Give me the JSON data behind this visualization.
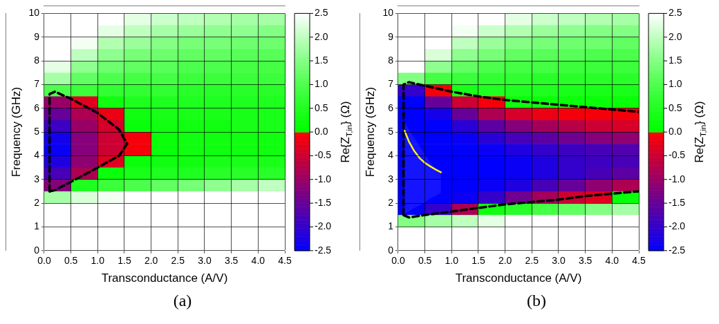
{
  "chart_data": [
    {
      "type": "heatmap",
      "xlabel": "Transconductance (A/V)",
      "ylabel": "Frequency (GHz)",
      "clabel": "Re{Z$_{T,in}$} (Ω)",
      "annotations": [
        "(a)"
      ],
      "xlim": [
        0,
        4.5
      ],
      "xticks": [
        {
          "value": 0,
          "label": "0.0"
        },
        {
          "value": 0.5,
          "label": "0.5"
        },
        {
          "value": 1,
          "label": "1.0"
        },
        {
          "value": 1.5,
          "label": "1.5"
        },
        {
          "value": 2,
          "label": "2.0"
        },
        {
          "value": 2.5,
          "label": "2.5"
        },
        {
          "value": 3,
          "label": "3.0"
        },
        {
          "value": 3.5,
          "label": "3.5"
        },
        {
          "value": 4,
          "label": "4.0"
        },
        {
          "value": 4.5,
          "label": "4.5"
        }
      ],
      "ylim": [
        0,
        10
      ],
      "yticks": [
        0,
        1,
        2,
        3,
        4,
        5,
        6,
        7,
        8,
        9,
        10
      ],
      "clim": [
        -2.5,
        2.5
      ],
      "cticks": [
        {
          "value": -2.5,
          "label": "-2.5"
        },
        {
          "value": -2,
          "label": "-2.0"
        },
        {
          "value": -1.5,
          "label": "-1.5"
        },
        {
          "value": -1,
          "label": "-1.0"
        },
        {
          "value": -0.5,
          "label": "-0.5"
        },
        {
          "value": 0,
          "label": "0.0"
        },
        {
          "value": 0.5,
          "label": "0.5"
        },
        {
          "value": 1,
          "label": "1.0"
        },
        {
          "value": 1.5,
          "label": "1.5"
        },
        {
          "value": 2,
          "label": "2.0"
        },
        {
          "value": 2.5,
          "label": "2.5"
        }
      ],
      "grid": true,
      "marker": "none",
      "cells": [
        [
          2.5,
          2.5,
          2.5,
          2.3,
          2.1,
          2.0,
          1.9,
          1.8,
          1.8
        ],
        [
          2.5,
          2.5,
          2.3,
          2.0,
          1.8,
          1.7,
          1.6,
          1.6,
          1.5
        ],
        [
          2.5,
          2.4,
          1.9,
          1.7,
          1.5,
          1.4,
          1.4,
          1.3,
          1.3
        ],
        [
          2.5,
          2.0,
          1.6,
          1.4,
          1.3,
          1.2,
          1.2,
          1.1,
          1.1
        ],
        [
          2.3,
          1.6,
          1.3,
          1.2,
          1.1,
          1.0,
          1.0,
          0.9,
          0.9
        ],
        [
          1.8,
          1.2,
          1.0,
          0.9,
          0.9,
          0.8,
          0.8,
          0.8,
          0.8
        ],
        [
          1.0,
          0.8,
          0.7,
          0.7,
          0.7,
          0.6,
          0.6,
          0.6,
          0.6
        ],
        [
          -1.0,
          -0.3,
          0.3,
          0.5,
          0.5,
          0.5,
          0.5,
          0.5,
          0.5
        ],
        [
          -1.5,
          -0.8,
          -0.2,
          0.3,
          0.4,
          0.4,
          0.4,
          0.4,
          0.4
        ],
        [
          -1.9,
          -1.0,
          -0.4,
          0.2,
          0.3,
          0.3,
          0.3,
          0.4,
          0.4
        ],
        [
          -2.3,
          -1.2,
          -0.5,
          -0.1,
          0.2,
          0.3,
          0.3,
          0.3,
          0.3
        ],
        [
          -2.4,
          -1.2,
          -0.5,
          -0.1,
          0.2,
          0.3,
          0.3,
          0.3,
          0.3
        ],
        [
          -2.2,
          -1.1,
          -0.3,
          0.2,
          0.3,
          0.3,
          0.4,
          0.4,
          0.4
        ],
        [
          -1.8,
          -0.8,
          0.2,
          0.4,
          0.5,
          0.5,
          0.6,
          0.6,
          0.6
        ],
        [
          -1.2,
          0.5,
          0.8,
          1.0,
          1.2,
          1.4,
          1.6,
          1.8,
          2.0
        ],
        [
          1.8,
          2.2,
          2.4,
          2.5,
          2.5,
          2.5,
          2.5,
          2.5,
          2.5
        ],
        [
          2.5,
          2.5,
          2.5,
          2.5,
          2.5,
          2.5,
          2.5,
          2.5,
          2.5
        ],
        [
          2.5,
          2.5,
          2.5,
          2.5,
          2.5,
          2.5,
          2.5,
          2.5,
          2.5
        ],
        [
          2.5,
          2.5,
          2.5,
          2.5,
          2.5,
          2.5,
          2.5,
          2.5,
          2.5
        ],
        [
          2.5,
          2.5,
          2.5,
          2.5,
          2.5,
          2.5,
          2.5,
          2.5,
          2.5
        ]
      ],
      "series": [
        {
          "type": "line",
          "color": "#000000",
          "line_style": "dashed",
          "x": [
            0.1,
            0.1,
            0.2,
            0.5,
            1.0,
            1.4,
            1.55
          ],
          "values": [
            2.5,
            6.6,
            6.7,
            6.4,
            5.8,
            5.1,
            4.5
          ]
        },
        {
          "type": "line",
          "color": "#000000",
          "line_style": "dashed",
          "x": [
            0.1,
            0.2,
            0.5,
            1.0,
            1.4,
            1.55
          ],
          "values": [
            2.5,
            2.55,
            2.9,
            3.5,
            4.0,
            4.5
          ]
        }
      ]
    },
    {
      "type": "heatmap",
      "xlabel": "Transconductance (A/V)",
      "ylabel": "Frequency (GHz)",
      "clabel": "Re{Z$_{T,in}$} (Ω)",
      "annotations": [
        "(b)"
      ],
      "xlim": [
        0,
        4.5
      ],
      "xticks": [
        {
          "value": 0,
          "label": "0.0"
        },
        {
          "value": 0.5,
          "label": "0.5"
        },
        {
          "value": 1,
          "label": "1.0"
        },
        {
          "value": 1.5,
          "label": "1.5"
        },
        {
          "value": 2,
          "label": "2.0"
        },
        {
          "value": 2.5,
          "label": "2.5"
        },
        {
          "value": 3,
          "label": "3.0"
        },
        {
          "value": 3.5,
          "label": "3.5"
        },
        {
          "value": 4,
          "label": "4.0"
        },
        {
          "value": 4.5,
          "label": "4.5"
        }
      ],
      "ylim": [
        0,
        10
      ],
      "yticks": [
        0,
        1,
        2,
        3,
        4,
        5,
        6,
        7,
        8,
        9,
        10
      ],
      "clim": [
        -2.5,
        2.5
      ],
      "cticks": [
        {
          "value": -2.5,
          "label": "-2.5"
        },
        {
          "value": -2,
          "label": "-2.0"
        },
        {
          "value": -1.5,
          "label": "-1.5"
        },
        {
          "value": -1,
          "label": "-1.0"
        },
        {
          "value": -0.5,
          "label": "-0.5"
        },
        {
          "value": 0,
          "label": "0.0"
        },
        {
          "value": 0.5,
          "label": "0.5"
        },
        {
          "value": 1,
          "label": "1.0"
        },
        {
          "value": 1.5,
          "label": "1.5"
        },
        {
          "value": 2,
          "label": "2.0"
        },
        {
          "value": 2.5,
          "label": "2.5"
        }
      ],
      "grid": true,
      "marker": "none",
      "cells": [
        [
          2.5,
          2.5,
          2.5,
          2.5,
          2.3,
          2.1,
          2.0,
          1.9,
          1.8
        ],
        [
          2.5,
          2.5,
          2.4,
          2.1,
          1.9,
          1.7,
          1.6,
          1.5,
          1.5
        ],
        [
          2.5,
          2.5,
          2.0,
          1.7,
          1.5,
          1.4,
          1.3,
          1.3,
          1.2
        ],
        [
          2.5,
          2.2,
          1.6,
          1.4,
          1.2,
          1.1,
          1.1,
          1.0,
          1.0
        ],
        [
          2.5,
          1.6,
          1.2,
          1.0,
          0.9,
          0.9,
          0.8,
          0.8,
          0.8
        ],
        [
          1.5,
          0.9,
          0.8,
          0.7,
          0.7,
          0.6,
          0.6,
          0.6,
          0.6
        ],
        [
          -2.0,
          -0.1,
          0.4,
          0.5,
          0.5,
          0.5,
          0.4,
          0.4,
          0.4
        ],
        [
          -2.5,
          -1.5,
          -0.5,
          -0.1,
          0.2,
          0.2,
          0.2,
          0.2,
          0.2
        ],
        [
          -2.5,
          -2.3,
          -1.5,
          -0.8,
          -0.4,
          -0.2,
          -0.1,
          -0.1,
          -0.1
        ],
        [
          -2.5,
          -2.5,
          -2.1,
          -1.6,
          -1.2,
          -0.9,
          -0.7,
          -0.5,
          -0.4
        ],
        [
          -2.5,
          -2.5,
          -2.4,
          -2.1,
          -1.8,
          -1.6,
          -1.4,
          -1.2,
          -1.1
        ],
        [
          -2.5,
          -2.5,
          -2.5,
          -2.4,
          -2.2,
          -2.0,
          -1.9,
          -1.8,
          -1.7
        ],
        [
          -2.5,
          -2.5,
          -2.5,
          -2.5,
          -2.4,
          -2.2,
          -2.0,
          -1.9,
          -1.8
        ],
        [
          -2.5,
          -2.5,
          -2.5,
          -2.5,
          -2.4,
          -2.2,
          -2.0,
          -1.8,
          -1.6
        ],
        [
          -2.5,
          -2.5,
          -2.5,
          -2.4,
          -2.2,
          -1.8,
          -1.5,
          -1.1,
          -0.8
        ],
        [
          -2.5,
          -2.5,
          -2.4,
          -2.0,
          -1.4,
          -0.9,
          -0.5,
          -0.3,
          0.2
        ],
        [
          -2.5,
          -2.0,
          -0.8,
          0.3,
          0.6,
          0.9,
          1.2,
          1.5,
          1.8
        ],
        [
          1.5,
          1.8,
          2.0,
          2.3,
          2.5,
          2.5,
          2.5,
          2.5,
          2.5
        ],
        [
          2.5,
          2.5,
          2.5,
          2.5,
          2.5,
          2.5,
          2.5,
          2.5,
          2.5
        ],
        [
          2.5,
          2.5,
          2.5,
          2.5,
          2.5,
          2.5,
          2.5,
          2.5,
          2.5
        ]
      ],
      "series": [
        {
          "type": "line",
          "color": "#ffee00",
          "line_style": "solid",
          "x": [
            0.12,
            0.2,
            0.3,
            0.4,
            0.5,
            0.6,
            0.7,
            0.8
          ],
          "values": [
            5.05,
            4.6,
            4.2,
            3.9,
            3.7,
            3.55,
            3.42,
            3.3
          ],
          "lower": [
            1.55,
            1.65,
            1.8,
            1.9,
            2.05,
            2.2,
            2.3,
            2.45
          ],
          "upper": [
            5.4,
            5.1,
            4.75,
            4.4,
            4.05,
            3.7,
            3.45,
            3.3
          ]
        },
        {
          "type": "line",
          "color": "#000000",
          "line_style": "dashed",
          "x": [
            0.1,
            0.1,
            0.2,
            0.5,
            1.0,
            1.5,
            2.0,
            2.5,
            3.0,
            3.5,
            4.0,
            4.5
          ],
          "values": [
            1.5,
            7.0,
            7.1,
            6.95,
            6.7,
            6.5,
            6.35,
            6.25,
            6.15,
            6.05,
            5.95,
            5.85
          ]
        },
        {
          "type": "line",
          "color": "#000000",
          "line_style": "dashed",
          "x": [
            0.1,
            0.2,
            0.5,
            1.0,
            1.5,
            2.0,
            2.5,
            3.0,
            3.5,
            4.0,
            4.5
          ],
          "values": [
            1.5,
            1.4,
            1.5,
            1.65,
            1.8,
            1.95,
            2.05,
            2.15,
            2.3,
            2.4,
            2.5
          ]
        }
      ]
    }
  ]
}
